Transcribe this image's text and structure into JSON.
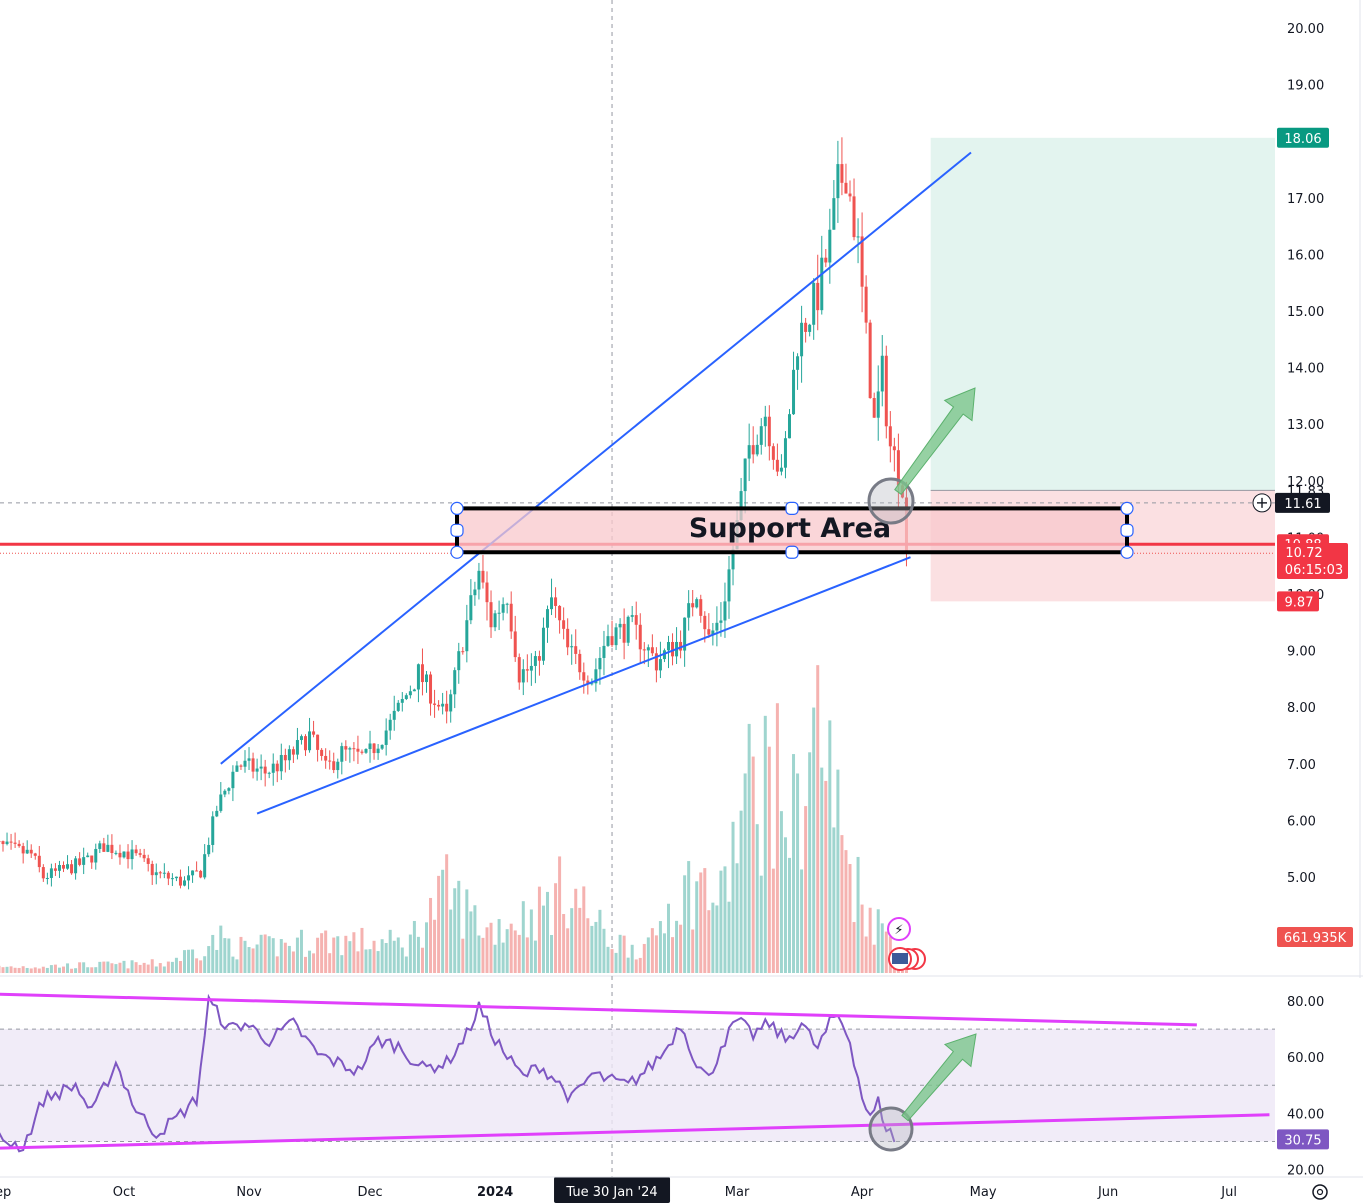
{
  "chart_data": {
    "type": "candlestick",
    "title": "",
    "price_axis": {
      "range": [
        4.0,
        20.3
      ],
      "ticks": [
        "20.00",
        "19.00",
        "18.00",
        "17.00",
        "16.00",
        "15.00",
        "14.00",
        "13.00",
        "12.00",
        "11.00",
        "10.00",
        "9.00",
        "8.00",
        "7.00",
        "6.00",
        "5.00"
      ],
      "scale": "linear"
    },
    "time_axis": {
      "labels": [
        "Sep",
        "Oct",
        "Nov",
        "Dec",
        "2024",
        "Mar",
        "Apr",
        "May",
        "Jun",
        "Jul"
      ],
      "label_days": [
        -1,
        30,
        61,
        91,
        122,
        182,
        213,
        243,
        274,
        304
      ],
      "crosshair_label": "Tue 30 Jan '24",
      "crosshair_day": 151
    },
    "price_badges": {
      "target": "18.06",
      "crosshair_price": "11.61",
      "entry_partial": "11.83",
      "last_price": "10.88",
      "last_close": "10.72",
      "countdown": "06:15:03",
      "stop": "9.87",
      "volume": "661.935K"
    },
    "support_zone": {
      "label": "Support Area",
      "top": 11.53,
      "bottom": 10.72
    },
    "channel_lines": [
      {
        "name": "upper",
        "from": [
          54,
          7.0
        ],
        "to": [
          240,
          17.8
        ]
      },
      {
        "name": "lower",
        "from": [
          63,
          6.12
        ],
        "to": [
          225,
          10.65
        ]
      }
    ],
    "long_position": {
      "entry": 11.83,
      "target": 18.06,
      "stop": 9.87,
      "start_day": 230,
      "end_day": 316
    },
    "horizontal_line": {
      "price": 10.88,
      "color": "#f23645"
    },
    "rsi": {
      "range": [
        17,
        84
      ],
      "ticks": [
        "80.00",
        "60.00",
        "40.00",
        "20.00"
      ],
      "upper_band": 70,
      "mid_band": 50,
      "lower_band": 30,
      "last": "30.75",
      "trend_lines": [
        {
          "from": [
            -4,
            82.5
          ],
          "to": [
            296,
            71.5
          ]
        },
        {
          "from": [
            -4,
            27.5
          ],
          "to": [
            314,
            39.5
          ]
        }
      ]
    },
    "ohlc_anchors": [
      [
        -4,
        5.6
      ],
      [
        7,
        5.4
      ],
      [
        10,
        5.0
      ],
      [
        20,
        5.25
      ],
      [
        25,
        5.55
      ],
      [
        30,
        5.45
      ],
      [
        33,
        5.35
      ],
      [
        38,
        5.05
      ],
      [
        45,
        4.9
      ],
      [
        49,
        5.1
      ],
      [
        53,
        6.2
      ],
      [
        58,
        7.0
      ],
      [
        65,
        6.85
      ],
      [
        70,
        7.05
      ],
      [
        76,
        7.5
      ],
      [
        80,
        6.9
      ],
      [
        84,
        7.2
      ],
      [
        90,
        7.1
      ],
      [
        96,
        7.7
      ],
      [
        103,
        8.6
      ],
      [
        110,
        7.8
      ],
      [
        114,
        9.2
      ],
      [
        118,
        10.4
      ],
      [
        121,
        9.5
      ],
      [
        125,
        10.0
      ],
      [
        128,
        8.6
      ],
      [
        132,
        8.7
      ],
      [
        136,
        9.9
      ],
      [
        140,
        9.0
      ],
      [
        146,
        8.5
      ],
      [
        150,
        9.3
      ],
      [
        156,
        9.4
      ],
      [
        162,
        8.8
      ],
      [
        168,
        9.2
      ],
      [
        172,
        10.1
      ],
      [
        175,
        9.2
      ],
      [
        178,
        9.6
      ],
      [
        182,
        11.2
      ],
      [
        185,
        12.6
      ],
      [
        189,
        13.2
      ],
      [
        193,
        12.0
      ],
      [
        197,
        14.5
      ],
      [
        202,
        15.3
      ],
      [
        205,
        16.2
      ],
      [
        207,
        17.2
      ],
      [
        209,
        17.5
      ],
      [
        212,
        16.1
      ],
      [
        214,
        14.5
      ],
      [
        216,
        13.0
      ],
      [
        218,
        13.9
      ],
      [
        220,
        12.6
      ],
      [
        223,
        12.0
      ],
      [
        224,
        10.72
      ]
    ],
    "volume_anchors": [
      [
        -4,
        0.06
      ],
      [
        20,
        0.08
      ],
      [
        40,
        0.1
      ],
      [
        54,
        0.35
      ],
      [
        60,
        0.25
      ],
      [
        80,
        0.35
      ],
      [
        100,
        0.3
      ],
      [
        110,
        0.85
      ],
      [
        120,
        0.45
      ],
      [
        133,
        0.65
      ],
      [
        140,
        0.9
      ],
      [
        150,
        0.35
      ],
      [
        160,
        0.25
      ],
      [
        165,
        0.7
      ],
      [
        172,
        0.95
      ],
      [
        178,
        0.75
      ],
      [
        184,
        1.8
      ],
      [
        190,
        2.1
      ],
      [
        196,
        1.6
      ],
      [
        202,
        2.65
      ],
      [
        208,
        1.4
      ],
      [
        212,
        0.9
      ],
      [
        216,
        0.55
      ],
      [
        222,
        0.3
      ],
      [
        224,
        0.25
      ]
    ],
    "rsi_anchors": [
      [
        -4,
        33
      ],
      [
        5,
        28
      ],
      [
        10,
        45
      ],
      [
        18,
        50
      ],
      [
        22,
        40
      ],
      [
        28,
        58
      ],
      [
        33,
        41
      ],
      [
        38,
        33
      ],
      [
        42,
        37
      ],
      [
        48,
        45
      ],
      [
        51,
        80
      ],
      [
        56,
        70
      ],
      [
        60,
        72
      ],
      [
        66,
        66
      ],
      [
        72,
        72
      ],
      [
        78,
        61
      ],
      [
        83,
        58
      ],
      [
        88,
        55
      ],
      [
        93,
        66
      ],
      [
        98,
        64
      ],
      [
        104,
        56
      ],
      [
        110,
        58
      ],
      [
        115,
        68
      ],
      [
        118,
        78
      ],
      [
        121,
        69
      ],
      [
        125,
        60
      ],
      [
        129,
        53
      ],
      [
        133,
        57
      ],
      [
        137,
        52
      ],
      [
        141,
        45
      ],
      [
        146,
        54
      ],
      [
        150,
        52
      ],
      [
        155,
        50
      ],
      [
        160,
        56
      ],
      [
        164,
        62
      ],
      [
        168,
        72
      ],
      [
        172,
        58
      ],
      [
        175,
        52
      ],
      [
        178,
        64
      ],
      [
        182,
        73
      ],
      [
        186,
        68
      ],
      [
        190,
        72
      ],
      [
        194,
        66
      ],
      [
        198,
        72
      ],
      [
        202,
        63
      ],
      [
        205,
        72
      ],
      [
        207,
        75
      ],
      [
        210,
        66
      ],
      [
        213,
        46
      ],
      [
        215,
        38
      ],
      [
        217,
        44
      ],
      [
        219,
        35
      ],
      [
        221,
        31
      ]
    ],
    "colors": {
      "up": "#26a69a",
      "down": "#ef5350",
      "trendline": "#2962ff",
      "rsi_line": "#7e57c2",
      "rsi_trend": "#e040fb",
      "support_fill": "#f8c8cc",
      "target_fill": "#e3f4ef",
      "stop_fill": "#fbe0e2",
      "target_badge": "#089981",
      "stop_badge": "#f23645",
      "rsi_badge": "#7e57c2",
      "arrow": "#7cc68c"
    }
  }
}
